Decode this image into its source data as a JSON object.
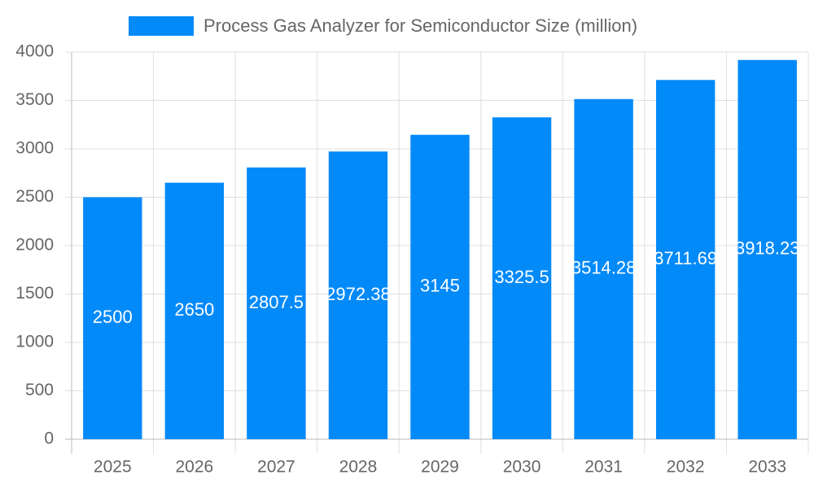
{
  "chart_data": {
    "type": "bar",
    "categories": [
      "2025",
      "2026",
      "2027",
      "2028",
      "2029",
      "2030",
      "2031",
      "2032",
      "2033"
    ],
    "series": [
      {
        "name": "Process Gas Analyzer for Semiconductor Size (million)",
        "color": "#038af9",
        "values": [
          2500,
          2650,
          2807.5,
          2972.38,
          3145,
          3325.5,
          3514.28,
          3711.69,
          3918.23
        ]
      }
    ],
    "ylim": [
      0,
      4000
    ],
    "yticks": [
      0,
      500,
      1000,
      1500,
      2000,
      2500,
      3000,
      3500,
      4000
    ],
    "grid": true,
    "legend": "top",
    "data_labels": true
  }
}
